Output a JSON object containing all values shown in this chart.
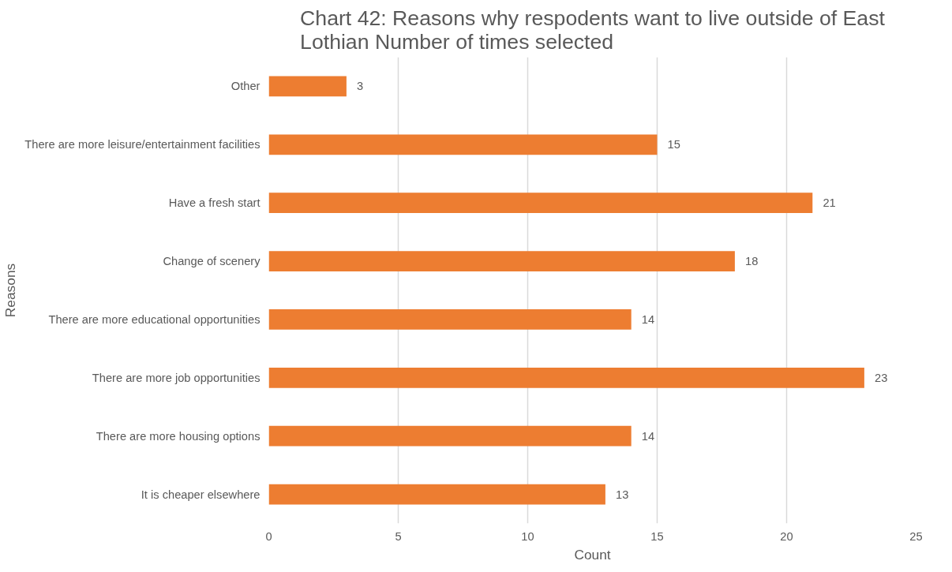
{
  "chart_data": {
    "type": "bar",
    "orientation": "horizontal",
    "title": "Chart 42: Reasons why respodents want to live outside of East Lothian Number of times selected",
    "xlabel": "Count",
    "ylabel": "Reasons",
    "categories": [
      "Other",
      "There are more leisure/entertainment facilities",
      "Have a fresh start",
      "Change of scenery",
      "There are more educational opportunities",
      "There are more job opportunities",
      "There are more housing options",
      "It is cheaper elsewhere"
    ],
    "values": [
      3,
      15,
      21,
      18,
      14,
      23,
      14,
      13
    ],
    "color": "#ed7d31",
    "xlim": [
      0,
      25
    ],
    "xticks": [
      0,
      5,
      10,
      15,
      20,
      25
    ],
    "grid": "x",
    "data_labels": true
  }
}
